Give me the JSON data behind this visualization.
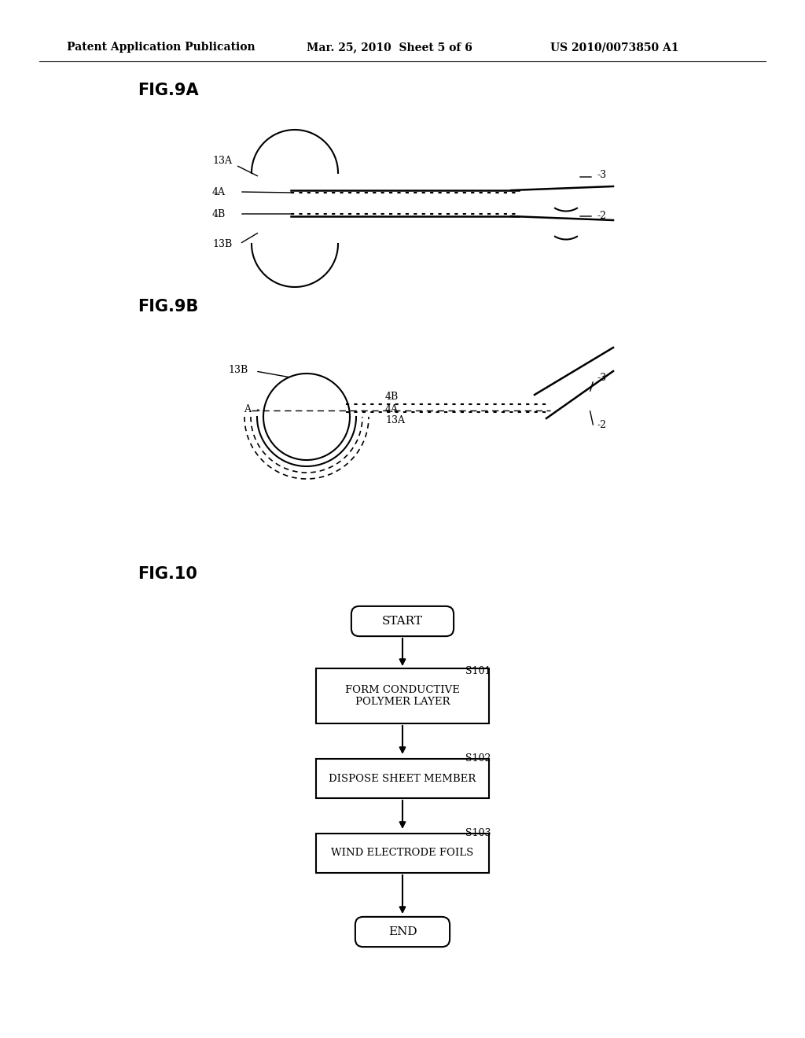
{
  "bg_color": "#ffffff",
  "header_left": "Patent Application Publication",
  "header_center": "Mar. 25, 2010  Sheet 5 of 6",
  "header_right": "US 2010/0073850 A1",
  "fig9a_label": "FIG.9A",
  "fig9b_label": "FIG.9B",
  "fig10_label": "FIG.10",
  "flowchart_steps": [
    "START",
    "FORM CONDUCTIVE\nPOLYMER LAYER",
    "DISPOSE SHEET MEMBER",
    "WIND ELECTRODE FOILS",
    "END"
  ],
  "step_labels": [
    "",
    "S101",
    "S102",
    "S103",
    ""
  ],
  "line_color": "#000000",
  "text_color": "#000000"
}
